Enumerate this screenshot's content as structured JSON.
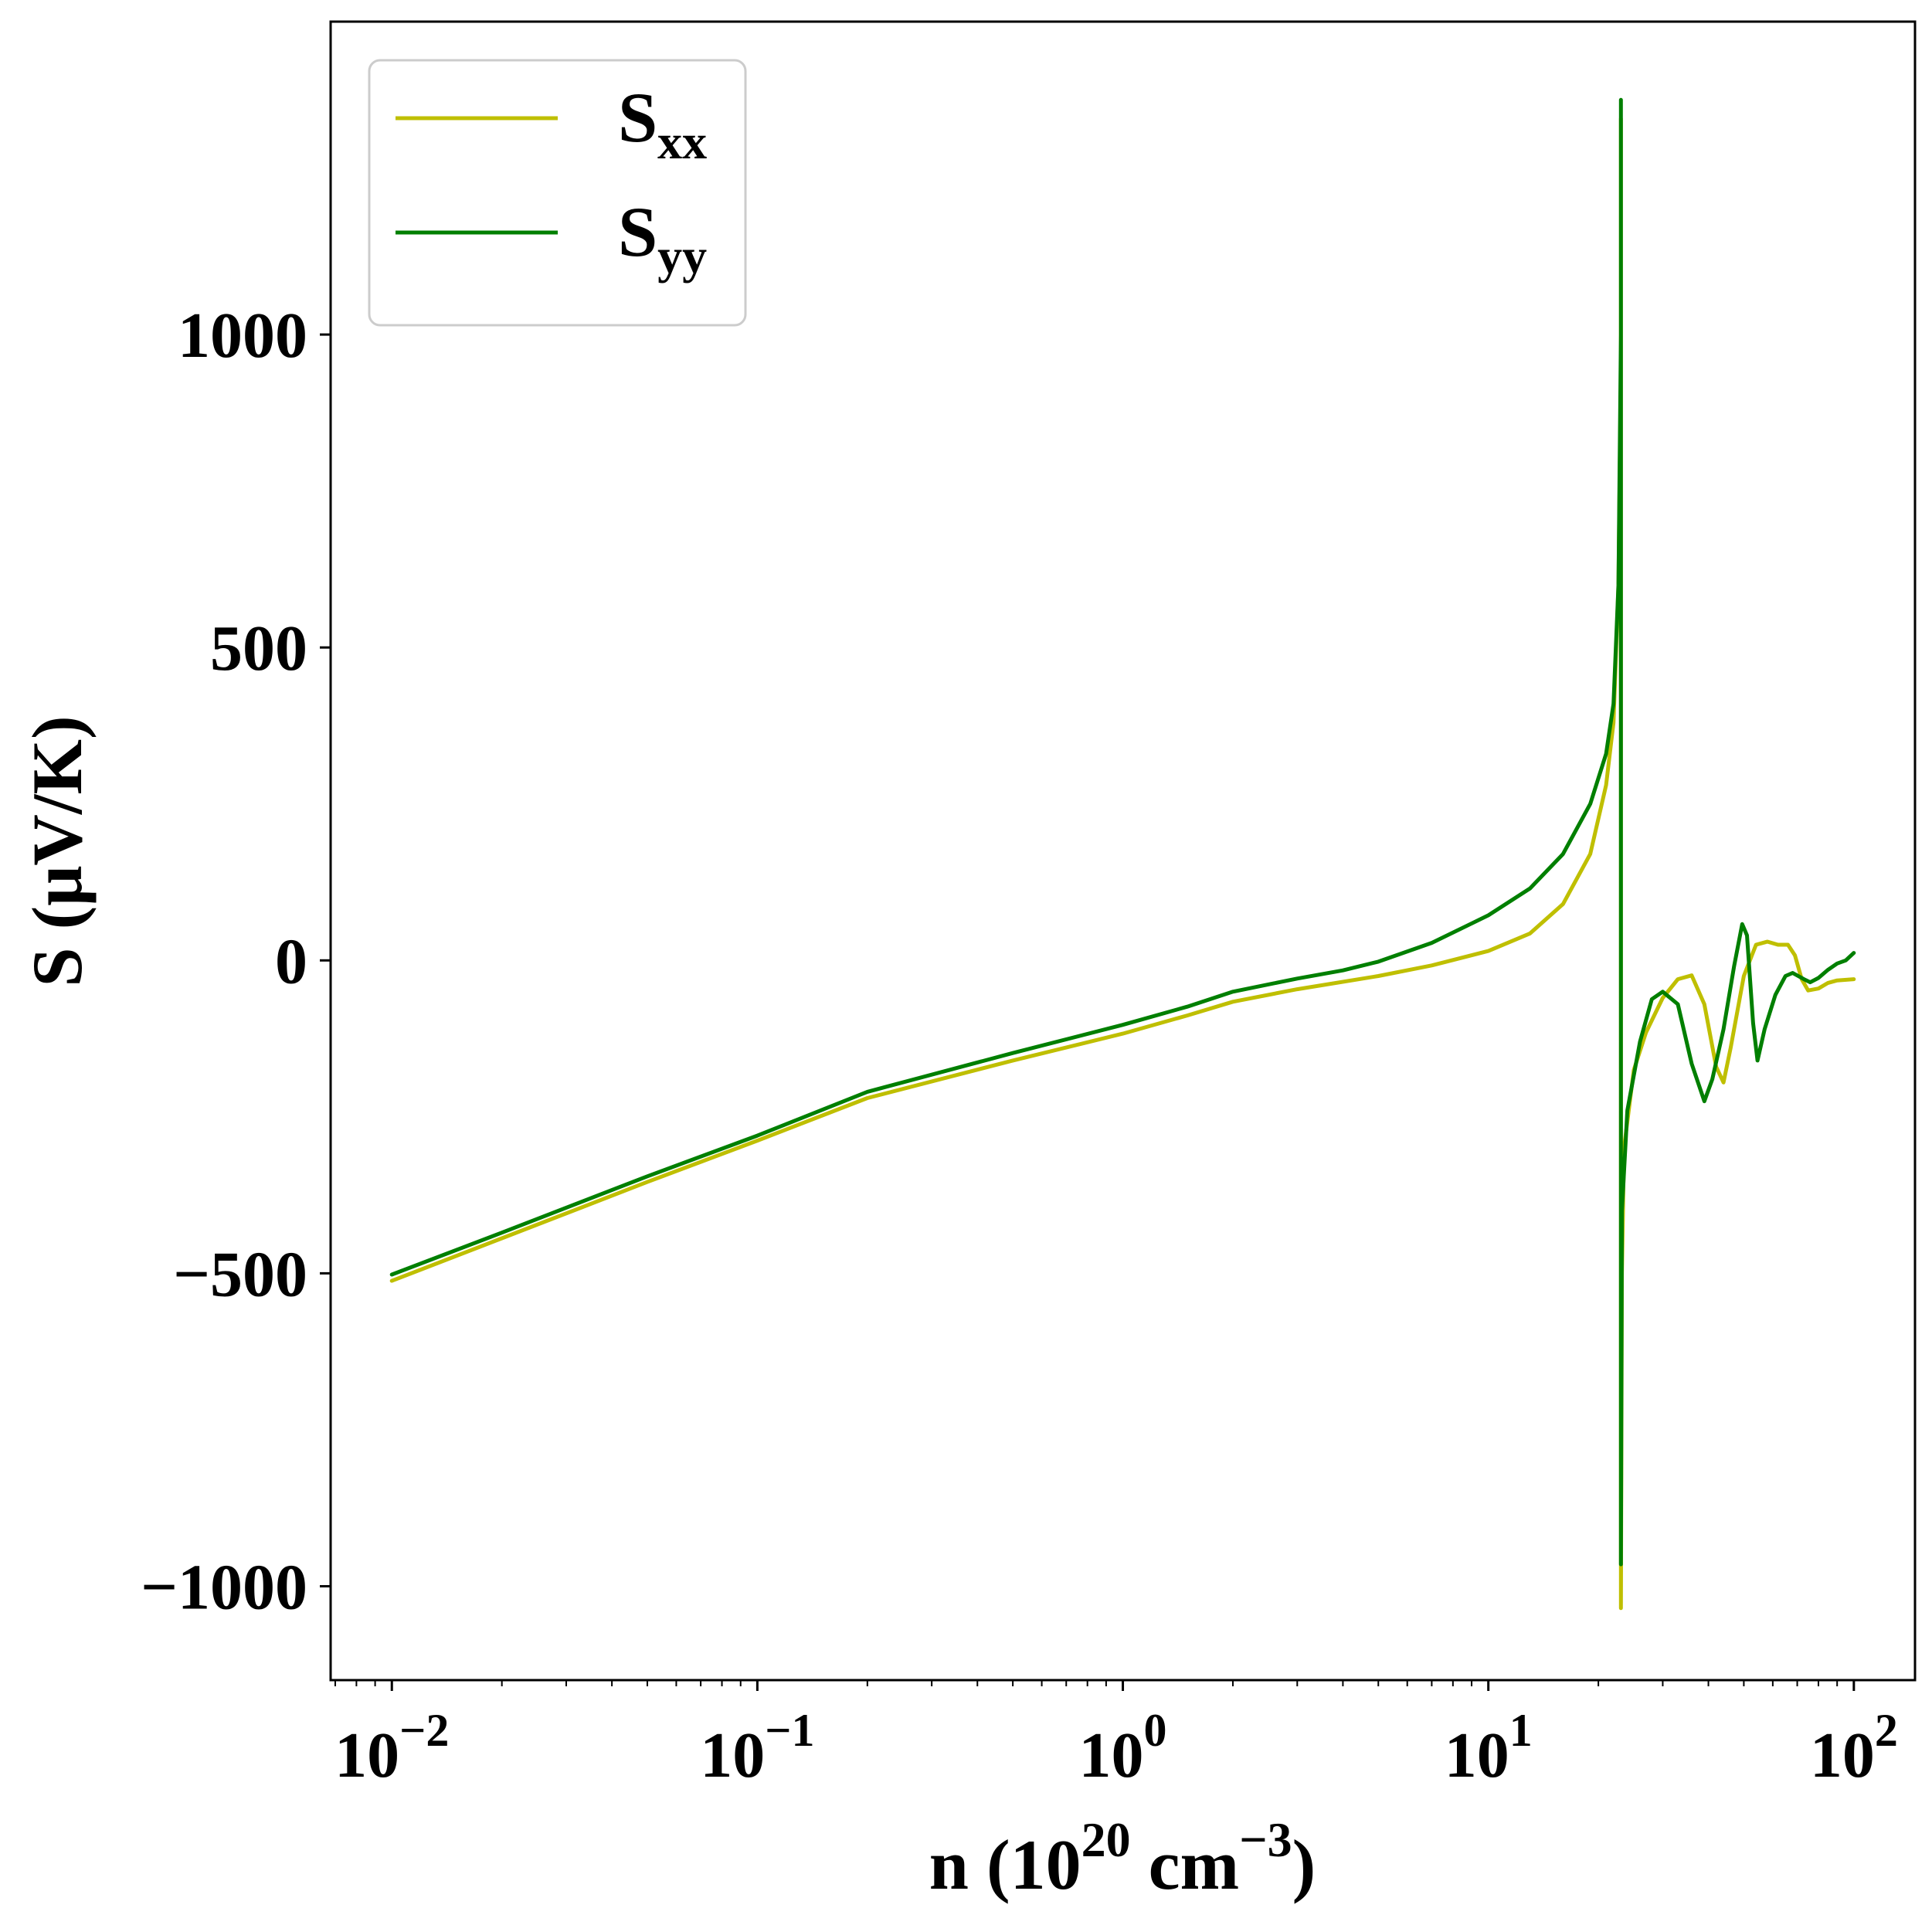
{
  "chart_data": {
    "type": "line",
    "xscale": "log",
    "xlabel": {
      "base": "n (10",
      "sup1": "20",
      "mid": " cm",
      "sup2": "−3",
      "end": ")"
    },
    "ylabel": "S (μV/K)",
    "xlim": [
      0.0068,
      147
    ],
    "ylim": [
      -1150,
      1500
    ],
    "x_ticks": [
      {
        "value": 0.01,
        "base": "10",
        "exp": "−2"
      },
      {
        "value": 0.1,
        "base": "10",
        "exp": "−1"
      },
      {
        "value": 1,
        "base": "10",
        "exp": "0"
      },
      {
        "value": 10,
        "base": "10",
        "exp": "1"
      },
      {
        "value": 100,
        "base": "10",
        "exp": "2"
      }
    ],
    "y_ticks": [
      {
        "value": 1000,
        "label": "1000"
      },
      {
        "value": 500,
        "label": "500"
      },
      {
        "value": 0,
        "label": "0"
      },
      {
        "value": -500,
        "label": "−500"
      },
      {
        "value": -1000,
        "label": "−1000"
      }
    ],
    "grid": false,
    "legend_position": "top-left",
    "series": [
      {
        "name": "S",
        "subscript": "xx",
        "color": "#bfbf00",
        "points": [
          [
            0.01,
            -512
          ],
          [
            0.02,
            -444
          ],
          [
            0.05,
            -354
          ],
          [
            0.1,
            -288
          ],
          [
            0.2,
            -220
          ],
          [
            0.5,
            -160
          ],
          [
            1,
            -117
          ],
          [
            1.5,
            -88
          ],
          [
            2,
            -66
          ],
          [
            3,
            -46
          ],
          [
            5,
            -25
          ],
          [
            7,
            -8
          ],
          [
            10,
            15
          ],
          [
            13,
            43
          ],
          [
            16,
            90
          ],
          [
            19,
            170
          ],
          [
            21,
            280
          ],
          [
            22,
            380
          ],
          [
            22.7,
            600
          ],
          [
            23.05,
            950
          ],
          [
            23.05,
            1345
          ],
          [
            23.05,
            -1035
          ],
          [
            23.2,
            -500
          ],
          [
            23.5,
            -300
          ],
          [
            25,
            -175
          ],
          [
            27,
            -115
          ],
          [
            30,
            -60
          ],
          [
            33,
            -30
          ],
          [
            36,
            -24
          ],
          [
            39,
            -70
          ],
          [
            42,
            -170
          ],
          [
            44,
            -195
          ],
          [
            46,
            -140
          ],
          [
            50,
            -25
          ],
          [
            54,
            25
          ],
          [
            58,
            30
          ],
          [
            62,
            25
          ],
          [
            66,
            25
          ],
          [
            69,
            8
          ],
          [
            72,
            -30
          ],
          [
            75,
            -48
          ],
          [
            80,
            -45
          ],
          [
            85,
            -36
          ],
          [
            90,
            -32
          ],
          [
            100,
            -30
          ]
        ]
      },
      {
        "name": "S",
        "subscript": "yy",
        "color": "#007f00",
        "points": [
          [
            0.01,
            -502
          ],
          [
            0.02,
            -435
          ],
          [
            0.05,
            -345
          ],
          [
            0.1,
            -280
          ],
          [
            0.2,
            -210
          ],
          [
            0.5,
            -148
          ],
          [
            1,
            -103
          ],
          [
            1.5,
            -74
          ],
          [
            2,
            -50
          ],
          [
            3,
            -29
          ],
          [
            4,
            -16
          ],
          [
            5,
            -2
          ],
          [
            7,
            28
          ],
          [
            10,
            72
          ],
          [
            13,
            115
          ],
          [
            16,
            170
          ],
          [
            19,
            250
          ],
          [
            21,
            330
          ],
          [
            22,
            410
          ],
          [
            22.7,
            600
          ],
          [
            23.05,
            1000
          ],
          [
            23.05,
            1375
          ],
          [
            23.05,
            -965
          ],
          [
            23.2,
            -400
          ],
          [
            24,
            -240
          ],
          [
            26,
            -130
          ],
          [
            28,
            -62
          ],
          [
            30,
            -50
          ],
          [
            33,
            -70
          ],
          [
            36,
            -165
          ],
          [
            39,
            -225
          ],
          [
            41,
            -190
          ],
          [
            44,
            -110
          ],
          [
            47,
            -10
          ],
          [
            49.5,
            58
          ],
          [
            51,
            40
          ],
          [
            53,
            -100
          ],
          [
            54.5,
            -160
          ],
          [
            57,
            -110
          ],
          [
            61,
            -55
          ],
          [
            65,
            -25
          ],
          [
            68,
            -20
          ],
          [
            73,
            -30
          ],
          [
            76,
            -35
          ],
          [
            80,
            -28
          ],
          [
            85,
            -15
          ],
          [
            90,
            -5
          ],
          [
            95,
            0
          ],
          [
            100,
            12
          ]
        ]
      }
    ]
  }
}
